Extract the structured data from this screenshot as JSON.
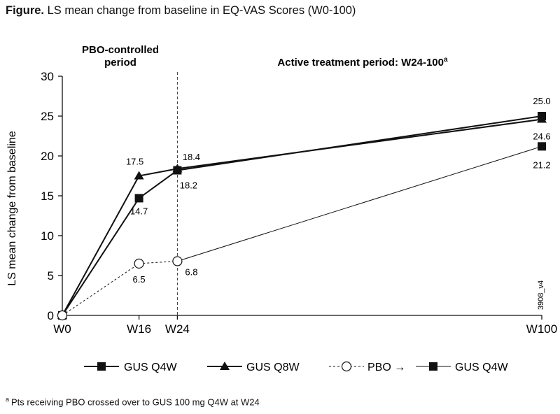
{
  "figure": {
    "title_prefix": "Figure.",
    "title_rest": "LS mean change from baseline in EQ-VAS Scores (W0-100)",
    "footnote_marker": "a",
    "footnote_text": "Pts receiving PBO crossed over to GUS 100 mg Q4W at W24",
    "code": "3908_v4"
  },
  "chart_data": {
    "type": "line",
    "ylabel": "LS mean change from baseline",
    "xlabel": "",
    "ylim": [
      0,
      30
    ],
    "yticks": [
      0,
      5,
      10,
      15,
      20,
      25,
      30
    ],
    "x_weeks": [
      0,
      16,
      24,
      100
    ],
    "x_tick_labels": [
      "W0",
      "W16",
      "W24",
      "W100"
    ],
    "grid": false,
    "periods": {
      "pbo_label_line1": "PBO-controlled",
      "pbo_label_line2": "period",
      "active_label": "Active treatment period: W24-100",
      "active_sup": "a",
      "divider_week": 24
    },
    "series": [
      {
        "name": "GUS Q4W",
        "marker": "square",
        "x": [
          0,
          16,
          24,
          100
        ],
        "y": [
          0,
          14.7,
          18.2,
          25.0
        ],
        "labels": [
          null,
          "14.7",
          "18.2",
          "25.0"
        ]
      },
      {
        "name": "GUS Q8W",
        "marker": "triangle",
        "x": [
          0,
          16,
          24,
          100
        ],
        "y": [
          0,
          17.5,
          18.4,
          24.6
        ],
        "labels": [
          null,
          "17.5",
          "18.4",
          "24.6"
        ]
      },
      {
        "name": "PBO → GUS Q4W",
        "marker": "circle-open",
        "x": [
          0,
          16,
          24
        ],
        "y": [
          0,
          6.5,
          6.8
        ],
        "labels": [
          null,
          "6.5",
          "6.8"
        ]
      },
      {
        "name": "PBO → GUS Q4W (crossover)",
        "marker": "square",
        "x": [
          24,
          100
        ],
        "y": [
          6.8,
          21.2
        ],
        "labels": [
          null,
          "21.2"
        ]
      }
    ],
    "legend": {
      "placement": "bottom",
      "item1": "GUS Q4W",
      "item2": "GUS Q8W",
      "item3_prefix": "PBO →",
      "item3_suffix": "GUS Q4W"
    }
  }
}
